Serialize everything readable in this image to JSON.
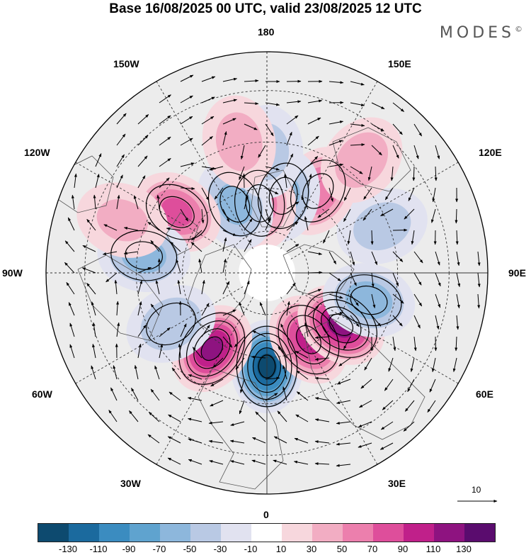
{
  "title": "Base 16/08/2025 00 UTC, valid 23/08/2025 12 UTC",
  "brand": "MODES",
  "brand_mark": "©",
  "longitude_labels": {
    "top": "180",
    "bottom": "0",
    "left": "90W",
    "right": "90E",
    "w150": "150W",
    "e150": "150E",
    "w120": "120W",
    "e120": "120E",
    "w60": "60W",
    "e60": "60E",
    "w30": "30W",
    "e30": "30E"
  },
  "reference_vector": {
    "label": "10"
  },
  "colorbar": {
    "colors": [
      "#0d4a6f",
      "#1b6a9e",
      "#3b8cc0",
      "#5fa3cf",
      "#8db7dc",
      "#b9c9e4",
      "#e1e2f0",
      "#ffffff",
      "#f7d7dd",
      "#f2adc3",
      "#ec7fad",
      "#de4e9b",
      "#c0208a",
      "#8e1380",
      "#5a0c6e"
    ],
    "ticks": [
      "-130",
      "-110",
      "-90",
      "-70",
      "-50",
      "-30",
      "-10",
      "10",
      "30",
      "50",
      "70",
      "90",
      "110",
      "130"
    ]
  },
  "anomalies": [
    {
      "lon": 0,
      "lat": 57,
      "value": -135
    },
    {
      "lon": 32,
      "lat": 62,
      "value": 95
    },
    {
      "lon": 324,
      "lat": 57,
      "value": 112
    },
    {
      "lon": 55,
      "lat": 58,
      "value": 120
    },
    {
      "lon": 75,
      "lat": 53,
      "value": -62
    },
    {
      "lon": 112,
      "lat": 47,
      "value": -38
    },
    {
      "lon": 148,
      "lat": 56,
      "value": 68
    },
    {
      "lon": 168,
      "lat": 62,
      "value": -55
    },
    {
      "lon": 186,
      "lat": 65,
      "value": 58
    },
    {
      "lon": 205,
      "lat": 63,
      "value": -55
    },
    {
      "lon": 236,
      "lat": 52,
      "value": 72
    },
    {
      "lon": 262,
      "lat": 47,
      "value": -58
    },
    {
      "lon": 298,
      "lat": 52,
      "value": -45
    },
    {
      "lon": 180,
      "lat": 48,
      "value": -35
    },
    {
      "lon": 192,
      "lat": 44,
      "value": 38
    },
    {
      "lon": 140,
      "lat": 40,
      "value": 40
    },
    {
      "lon": 250,
      "lat": 38,
      "value": 30
    }
  ]
}
